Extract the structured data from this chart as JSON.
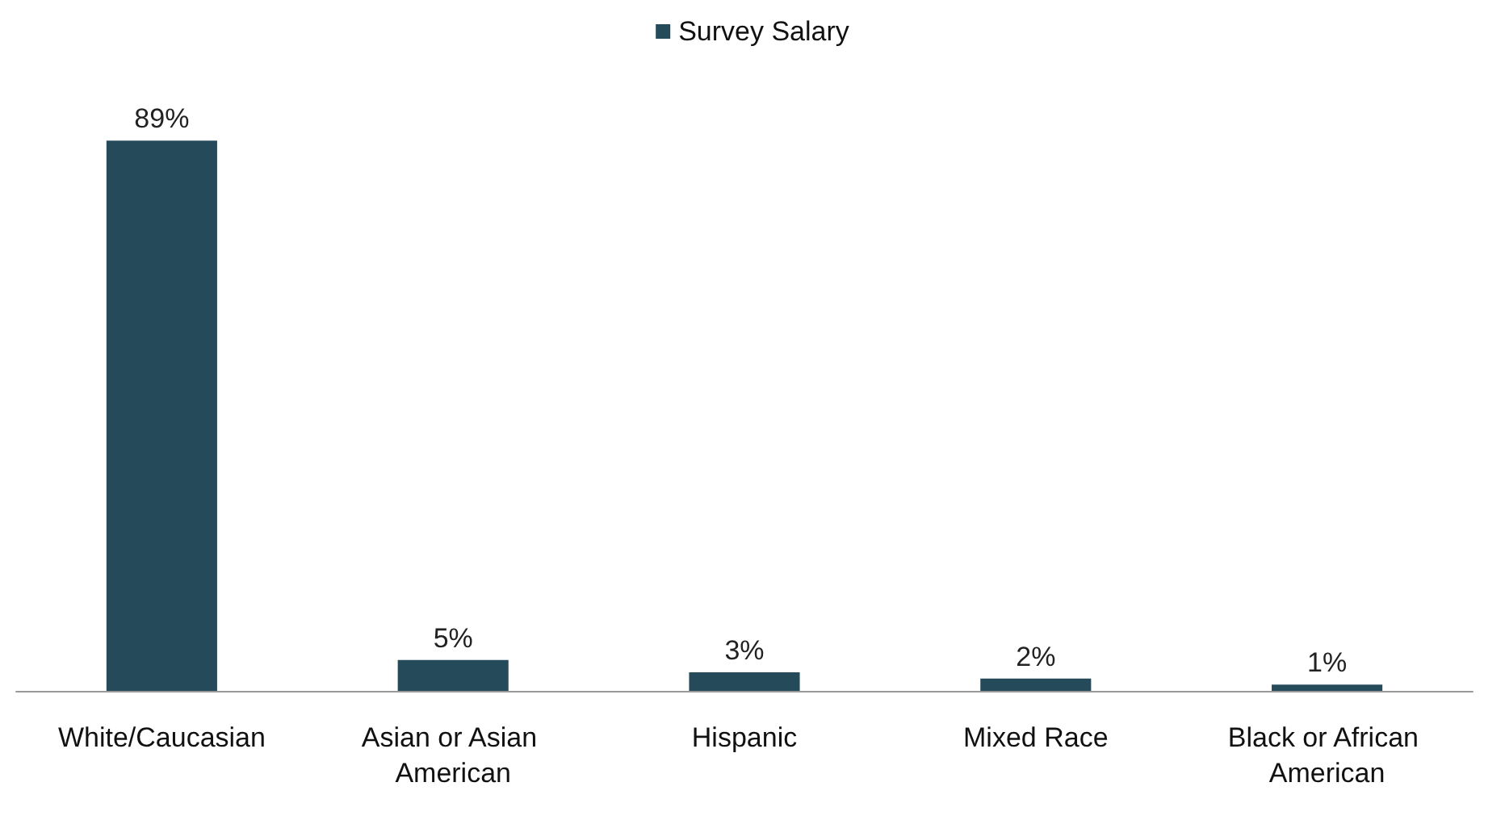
{
  "chart_data": {
    "type": "bar",
    "categories": [
      "White/Caucasian",
      "Asian or Asian American",
      "Hispanic",
      "Mixed Race",
      "Black or African American"
    ],
    "series": [
      {
        "name": "Survey Salary",
        "color": "#254a5a",
        "values": [
          89,
          5,
          3,
          2,
          1
        ],
        "value_labels": [
          "89%",
          "5%",
          "3%",
          "2%",
          "1%"
        ]
      }
    ],
    "legend": "top"
  }
}
